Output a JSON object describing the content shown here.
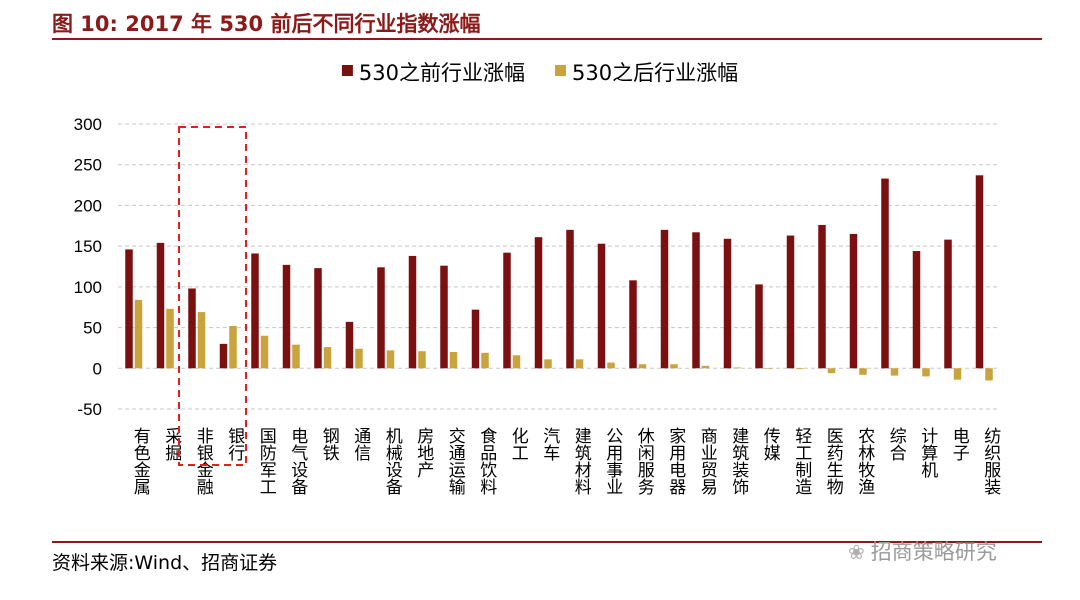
{
  "header": {
    "title": "图 10:  2017 年 530 前后不同行业指数涨幅"
  },
  "footer": {
    "source": "资料来源:Wind、招商证券",
    "watermark": "招商策略研究"
  },
  "colors": {
    "before": "#7b1010",
    "after": "#c9a43c",
    "accent": "#8b1a1a",
    "highlight_box": "#e02020"
  },
  "chart_data": {
    "type": "bar",
    "title": "",
    "xlabel": "",
    "ylabel": "",
    "ylim": [
      -50,
      300
    ],
    "yticks": [
      -50,
      0,
      50,
      100,
      150,
      200,
      250,
      300
    ],
    "grid": true,
    "legend_position": "top-center",
    "categories": [
      "有色金属",
      "采掘",
      "非银金融",
      "银行",
      "国防军工",
      "电气设备",
      "钢铁",
      "通信",
      "机械设备",
      "房地产",
      "交通运输",
      "食品饮料",
      "化工",
      "汽车",
      "建筑材料",
      "公用事业",
      "休闲服务",
      "家用电器",
      "商业贸易",
      "建筑装饰",
      "传媒",
      "轻工制造",
      "医药生物",
      "农林牧渔",
      "综合",
      "计算机",
      "电子",
      "纺织服装"
    ],
    "series": [
      {
        "name": "530之前行业涨幅",
        "values": [
          146,
          154,
          98,
          30,
          141,
          127,
          123,
          57,
          124,
          138,
          126,
          72,
          142,
          161,
          170,
          153,
          108,
          170,
          167,
          159,
          103,
          163,
          176,
          165,
          233,
          144,
          158,
          237
        ]
      },
      {
        "name": "530之后行业涨幅",
        "values": [
          84,
          73,
          69,
          52,
          40,
          29,
          26,
          24,
          22,
          21,
          20,
          19,
          16,
          11,
          11,
          7,
          5,
          5,
          3,
          1,
          0,
          -1,
          -6,
          -8,
          -9,
          -10,
          -14,
          -15
        ]
      }
    ],
    "highlight": {
      "categories": [
        "非银金融",
        "银行"
      ]
    }
  }
}
